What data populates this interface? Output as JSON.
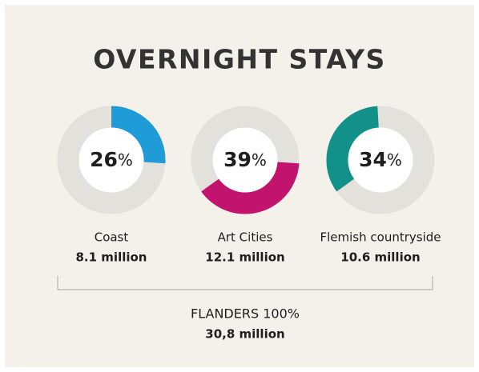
{
  "title": "OVERNIGHT STAYS",
  "chart_data": [
    {
      "type": "donut",
      "category": "Coast",
      "value": 26,
      "unit": "%",
      "subtitle": "8.1 million",
      "color": "#1f9bd7",
      "track_color": "#e3e1dc"
    },
    {
      "type": "donut",
      "category": "Art Cities",
      "value": 39,
      "unit": "%",
      "subtitle": "12.1 million",
      "color": "#c2136f",
      "track_color": "#e3e1dc"
    },
    {
      "type": "donut",
      "category": "Flemish countryside",
      "value": 34,
      "unit": "%",
      "subtitle": "10.6 million",
      "color": "#119189",
      "track_color": "#e3e1dc"
    }
  ],
  "footer": {
    "label": "FLANDERS 100%",
    "total": "30,8 million"
  }
}
